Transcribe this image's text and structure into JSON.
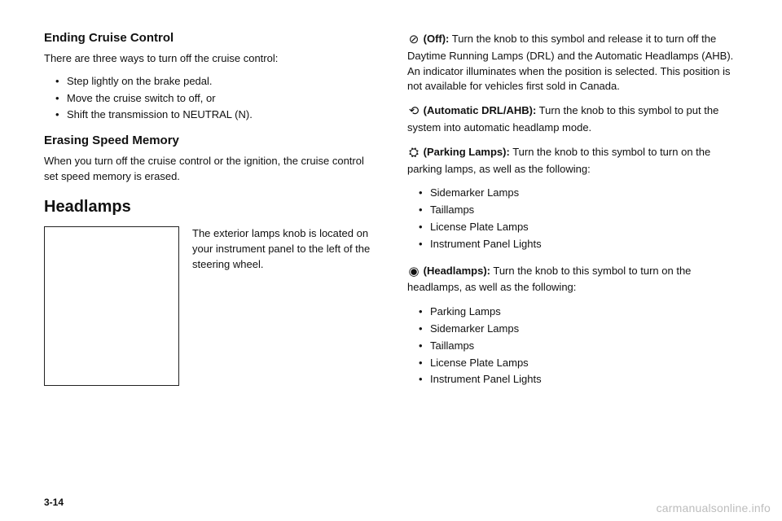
{
  "left": {
    "heading1": "Ending Cruise Control",
    "intro1": "There are three ways to turn off the cruise control:",
    "bullets1": [
      "Step lightly on the brake pedal.",
      "Move the cruise switch to off, or",
      "Shift the transmission to NEUTRAL (N)."
    ],
    "heading2": "Erasing Speed Memory",
    "para2": "When you turn off the cruise control or the ignition, the cruise control set speed memory is erased.",
    "heading3": "Headlamps",
    "caption": "The exterior lamps knob is located on your instrument panel to the left of the steering wheel."
  },
  "right": {
    "defs": [
      {
        "sym": "⊘",
        "label": "(Off):",
        "text": " Turn the knob to this symbol and release it to turn off the Daytime Running Lamps (DRL) and the Automatic Headlamps (AHB). An indicator illuminates when the position is selected. This position is not available for vehicles first sold in Canada."
      },
      {
        "sym": "⟲",
        "label": "(Automatic DRL/AHB):",
        "text": " Turn the knob to this symbol to put the system into automatic headlamp mode."
      },
      {
        "sym": "⛭",
        "label": "(Parking Lamps):",
        "text": " Turn the knob to this symbol to turn on the parking lamps, as well as the following:"
      }
    ],
    "list1": [
      "Sidemarker Lamps",
      "Taillamps",
      "License Plate Lamps",
      "Instrument Panel Lights"
    ],
    "def4": {
      "sym": "◉",
      "label": "(Headlamps):",
      "text": " Turn the knob to this symbol to turn on the headlamps, as well as the following:"
    },
    "list2": [
      "Parking Lamps",
      "Sidemarker Lamps",
      "Taillamps",
      "License Plate Lamps",
      "Instrument Panel Lights"
    ]
  },
  "pageNum": "3-14",
  "watermark": "carmanualsonline.info"
}
